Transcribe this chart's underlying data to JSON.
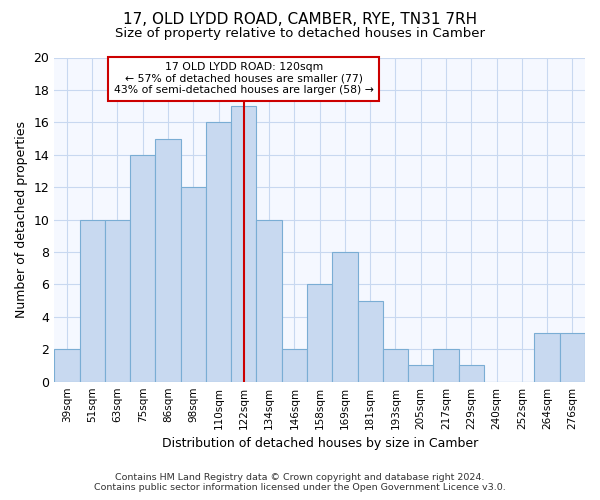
{
  "title": "17, OLD LYDD ROAD, CAMBER, RYE, TN31 7RH",
  "subtitle": "Size of property relative to detached houses in Camber",
  "xlabel": "Distribution of detached houses by size in Camber",
  "ylabel": "Number of detached properties",
  "bar_color": "#c8d9f0",
  "bar_edge_color": "#7aadd4",
  "categories": [
    "39sqm",
    "51sqm",
    "63sqm",
    "75sqm",
    "86sqm",
    "98sqm",
    "110sqm",
    "122sqm",
    "134sqm",
    "146sqm",
    "158sqm",
    "169sqm",
    "181sqm",
    "193sqm",
    "205sqm",
    "217sqm",
    "229sqm",
    "240sqm",
    "252sqm",
    "264sqm",
    "276sqm"
  ],
  "values": [
    2,
    10,
    10,
    14,
    15,
    12,
    16,
    17,
    10,
    2,
    6,
    8,
    5,
    2,
    1,
    2,
    1,
    0,
    0,
    3,
    3
  ],
  "highlight_index": 7,
  "vline_color": "#cc0000",
  "annotation_line1": "17 OLD LYDD ROAD: 120sqm",
  "annotation_line2": "← 57% of detached houses are smaller (77)",
  "annotation_line3": "43% of semi-detached houses are larger (58) →",
  "annotation_box_color": "#cc0000",
  "ylim": [
    0,
    20
  ],
  "yticks": [
    0,
    2,
    4,
    6,
    8,
    10,
    12,
    14,
    16,
    18,
    20
  ],
  "background_color": "#ffffff",
  "plot_bg_color": "#f5f8ff",
  "grid_color": "#c8d8f0",
  "footer_line1": "Contains HM Land Registry data © Crown copyright and database right 2024.",
  "footer_line2": "Contains public sector information licensed under the Open Government Licence v3.0."
}
